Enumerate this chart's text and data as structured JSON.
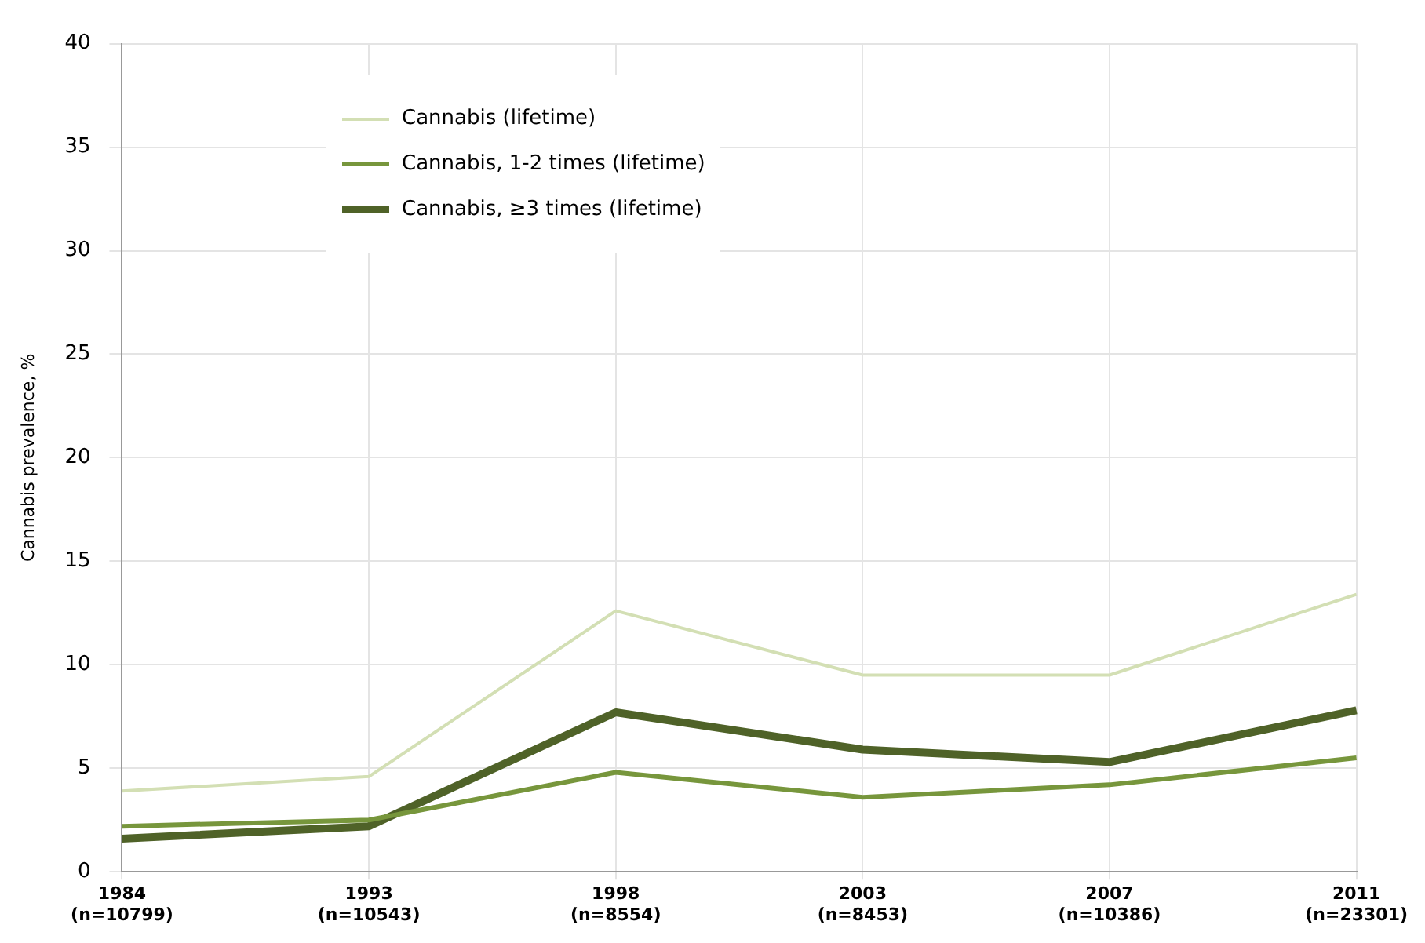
{
  "chart_data": {
    "type": "line",
    "ylabel": "Cannabis prevalence, %",
    "categories": [
      "1984 (n=10799)",
      "1993 (n=10543)",
      "1998 (n=8554)",
      "2003 (n=8453)",
      "2007 (n=10386)",
      "2011 (n=23301)"
    ],
    "series": [
      {
        "name": "Cannabis (lifetime)",
        "color": "#d3dfb4",
        "values": [
          3.9,
          4.6,
          12.6,
          9.5,
          9.5,
          13.4
        ]
      },
      {
        "name": "Cannabis, 1-2 times (lifetime)",
        "color": "#77963c",
        "values": [
          2.2,
          2.5,
          4.8,
          3.6,
          4.2,
          5.5
        ]
      },
      {
        "name": "Cannabis, ≥3 times (lifetime)",
        "color": "#4f6228",
        "values": [
          1.6,
          2.2,
          7.7,
          5.9,
          5.3,
          7.8
        ]
      }
    ],
    "ylim": [
      0,
      40
    ],
    "yticks": [
      0,
      5,
      10,
      15,
      20,
      25,
      30,
      35,
      40
    ],
    "grid": true,
    "legend": "top left",
    "marker": "none",
    "line_style": "solid"
  }
}
